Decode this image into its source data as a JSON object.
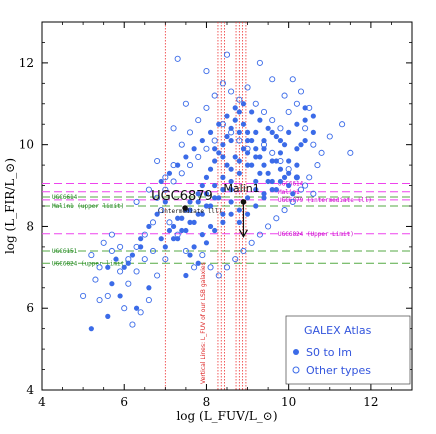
{
  "chart_data": {
    "type": "scatter",
    "xlim": [
      4,
      13
    ],
    "ylim": [
      4,
      13
    ],
    "x_ticks": [
      "4",
      "6",
      "8",
      "10",
      "12"
    ],
    "y_ticks": [
      "4",
      "6",
      "8",
      "10",
      "12"
    ],
    "xlabel": "log (L_FUV/L_⊙)",
    "ylabel": "log (L_FIR/L_⊙)",
    "legend": {
      "title": "GALEX Atlas",
      "entries": [
        {
          "label": "S0 to Im",
          "marker": "filled"
        },
        {
          "label": "Other types",
          "marker": "open"
        }
      ],
      "placement": "bottom-right"
    },
    "colors": {
      "points": "#3b6be8",
      "magenta_lines": "#ee44ee",
      "green_lines": "#55aa44",
      "red_lines": "#ee3333",
      "legend_text": "#3355dd",
      "magenta_text": "#cc00cc",
      "green_text": "#228822"
    },
    "horizontal_lines": [
      {
        "y": 9.05,
        "color": "magenta",
        "label": "UGC6614",
        "side": "right"
      },
      {
        "y": 8.85,
        "color": "magenta",
        "label": "Malin1",
        "side": "right"
      },
      {
        "y": 8.65,
        "color": "magenta",
        "label": "UGC6879 (intermediate lll)",
        "side": "right"
      },
      {
        "y": 7.82,
        "color": "magenta",
        "label": "UGC6824 (Upper Limit)",
        "side": "right"
      },
      {
        "y": 8.72,
        "color": "green",
        "label": "UGC6614",
        "side": "left"
      },
      {
        "y": 8.5,
        "color": "green",
        "label": "Malin1 (upper limit)",
        "side": "left"
      },
      {
        "y": 7.4,
        "color": "green",
        "label": "UGC6151",
        "side": "left"
      },
      {
        "y": 7.1,
        "color": "green",
        "label": "UGC6824 (upper limit)",
        "side": "left"
      }
    ],
    "vertical_lines": [
      7.0,
      8.28,
      8.36,
      8.44,
      8.72,
      8.8,
      8.88,
      8.96
    ],
    "vertical_lines_label": "Vertical Lines: L_FUV of our LSB galaxies",
    "annotated_points": [
      {
        "label": "UGC6879",
        "x": 7.48,
        "y": 8.45,
        "note": "(intermediate lll)"
      },
      {
        "label": "Malin1",
        "x": 8.9,
        "y": 8.6,
        "upper_limit": true,
        "arrow_to": 7.75
      }
    ],
    "series": [
      {
        "name": "S0 to Im",
        "marker": "filled",
        "points": [
          [
            5.2,
            5.5
          ],
          [
            5.6,
            5.8
          ],
          [
            5.7,
            6.6
          ],
          [
            6.3,
            6.0
          ],
          [
            6.6,
            6.5
          ],
          [
            5.9,
            6.3
          ],
          [
            6.1,
            7.1
          ],
          [
            6.4,
            7.5
          ],
          [
            6.9,
            7.7
          ],
          [
            7.1,
            7.9
          ],
          [
            7.3,
            8.2
          ],
          [
            7.5,
            8.4
          ],
          [
            7.6,
            8.6
          ],
          [
            7.8,
            8.8
          ],
          [
            7.9,
            9.0
          ],
          [
            8.0,
            9.2
          ],
          [
            8.1,
            9.4
          ],
          [
            8.2,
            9.6
          ],
          [
            8.3,
            9.8
          ],
          [
            8.4,
            10.0
          ],
          [
            8.5,
            10.2
          ],
          [
            8.6,
            10.4
          ],
          [
            8.7,
            10.6
          ],
          [
            8.8,
            10.8
          ],
          [
            8.9,
            10.5
          ],
          [
            9.0,
            10.3
          ],
          [
            9.1,
            10.1
          ],
          [
            9.2,
            9.9
          ],
          [
            9.3,
            9.7
          ],
          [
            9.4,
            9.5
          ],
          [
            9.5,
            9.3
          ],
          [
            9.6,
            9.1
          ],
          [
            9.7,
            9.6
          ],
          [
            9.8,
            9.4
          ],
          [
            9.9,
            9.2
          ],
          [
            10.0,
            9.0
          ],
          [
            10.1,
            8.8
          ],
          [
            10.2,
            9.5
          ],
          [
            10.3,
            10.0
          ],
          [
            10.4,
            10.6
          ],
          [
            9.0,
            9.8
          ],
          [
            8.8,
            9.6
          ],
          [
            8.6,
            9.4
          ],
          [
            8.4,
            9.2
          ],
          [
            8.2,
            9.0
          ],
          [
            8.0,
            8.8
          ],
          [
            7.8,
            8.6
          ],
          [
            7.6,
            8.4
          ],
          [
            7.4,
            8.2
          ],
          [
            7.2,
            8.0
          ],
          [
            8.5,
            9.5
          ],
          [
            8.7,
            9.7
          ],
          [
            8.9,
            9.9
          ],
          [
            9.1,
            9.5
          ],
          [
            9.3,
            9.3
          ],
          [
            9.5,
            9.1
          ],
          [
            9.7,
            8.9
          ],
          [
            9.2,
            9.1
          ],
          [
            8.6,
            8.9
          ],
          [
            8.3,
            8.7
          ],
          [
            8.1,
            8.5
          ],
          [
            7.9,
            8.3
          ],
          [
            7.7,
            8.1
          ],
          [
            7.5,
            7.9
          ],
          [
            7.3,
            7.7
          ],
          [
            7.7,
            7.5
          ],
          [
            7.9,
            7.8
          ],
          [
            8.1,
            8.0
          ],
          [
            8.4,
            8.3
          ],
          [
            8.6,
            8.6
          ],
          [
            8.8,
            8.4
          ],
          [
            9.0,
            8.7
          ],
          [
            9.2,
            8.9
          ],
          [
            9.4,
            8.8
          ],
          [
            9.6,
            9.6
          ],
          [
            9.8,
            9.8
          ],
          [
            10.0,
            9.6
          ],
          [
            10.2,
            9.2
          ],
          [
            9.9,
            10.0
          ],
          [
            9.7,
            10.2
          ],
          [
            9.5,
            10.4
          ],
          [
            9.3,
            10.6
          ],
          [
            9.1,
            10.8
          ],
          [
            8.9,
            11.0
          ],
          [
            8.7,
            10.9
          ],
          [
            8.5,
            10.7
          ],
          [
            8.3,
            10.5
          ],
          [
            8.1,
            10.3
          ],
          [
            7.9,
            10.1
          ],
          [
            7.7,
            9.9
          ],
          [
            7.5,
            9.7
          ],
          [
            7.3,
            9.5
          ],
          [
            7.1,
            9.3
          ],
          [
            6.9,
            9.1
          ],
          [
            7.0,
            8.6
          ],
          [
            6.8,
            8.3
          ],
          [
            6.6,
            8.0
          ],
          [
            6.4,
            7.7
          ],
          [
            6.2,
            7.3
          ],
          [
            6.0,
            7.0
          ],
          [
            5.8,
            7.2
          ],
          [
            5.6,
            7.0
          ],
          [
            8.2,
            9.9
          ],
          [
            8.4,
            9.7
          ],
          [
            8.6,
            10.1
          ],
          [
            8.8,
            10.3
          ],
          [
            9.0,
            10.1
          ],
          [
            9.2,
            10.3
          ],
          [
            9.4,
            10.1
          ],
          [
            9.6,
            10.3
          ],
          [
            9.8,
            10.1
          ],
          [
            10.0,
            10.3
          ],
          [
            10.2,
            10.5
          ],
          [
            10.4,
            10.9
          ],
          [
            10.6,
            10.7
          ],
          [
            9.4,
            9.9
          ],
          [
            9.2,
            9.7
          ],
          [
            9.0,
            9.5
          ],
          [
            8.8,
            9.3
          ],
          [
            8.6,
            9.1
          ],
          [
            8.4,
            8.9
          ],
          [
            8.2,
            8.7
          ],
          [
            8.0,
            8.5
          ],
          [
            7.8,
            8.3
          ],
          [
            7.6,
            8.1
          ],
          [
            7.4,
            7.9
          ],
          [
            7.2,
            7.7
          ],
          [
            7.0,
            7.5
          ],
          [
            7.6,
            7.3
          ],
          [
            7.8,
            7.1
          ],
          [
            7.5,
            6.8
          ],
          [
            8.0,
            7.6
          ],
          [
            8.2,
            7.9
          ],
          [
            8.4,
            8.1
          ],
          [
            8.6,
            8.3
          ],
          [
            8.8,
            8.1
          ],
          [
            9.0,
            8.3
          ],
          [
            9.2,
            8.5
          ],
          [
            9.4,
            8.7
          ],
          [
            9.6,
            8.9
          ],
          [
            9.8,
            9.1
          ],
          [
            10.0,
            9.3
          ],
          [
            10.2,
            9.9
          ],
          [
            10.4,
            10.1
          ],
          [
            10.6,
            10.3
          ]
        ]
      },
      {
        "name": "Other types",
        "marker": "open",
        "points": [
          [
            5.4,
            6.2
          ],
          [
            5.0,
            6.3
          ],
          [
            5.2,
            7.3
          ],
          [
            5.4,
            7.0
          ],
          [
            5.5,
            7.6
          ],
          [
            5.7,
            7.4
          ],
          [
            5.9,
            6.9
          ],
          [
            6.1,
            6.6
          ],
          [
            6.3,
            6.9
          ],
          [
            6.5,
            7.2
          ],
          [
            6.7,
            7.4
          ],
          [
            5.3,
            6.7
          ],
          [
            5.6,
            6.3
          ],
          [
            6.0,
            6.0
          ],
          [
            6.2,
            5.6
          ],
          [
            6.4,
            5.9
          ],
          [
            6.6,
            6.2
          ],
          [
            6.8,
            6.8
          ],
          [
            7.0,
            7.2
          ],
          [
            6.3,
            8.6
          ],
          [
            6.6,
            8.9
          ],
          [
            7.0,
            9.2
          ],
          [
            7.2,
            9.5
          ],
          [
            7.4,
            10.0
          ],
          [
            7.6,
            10.3
          ],
          [
            7.8,
            10.6
          ],
          [
            8.0,
            10.9
          ],
          [
            8.2,
            11.2
          ],
          [
            8.4,
            11.5
          ],
          [
            8.6,
            11.3
          ],
          [
            8.8,
            11.1
          ],
          [
            9.0,
            11.4
          ],
          [
            9.2,
            11.0
          ],
          [
            9.4,
            10.8
          ],
          [
            9.6,
            10.6
          ],
          [
            9.8,
            10.4
          ],
          [
            10.0,
            10.8
          ],
          [
            10.2,
            11.0
          ],
          [
            10.4,
            10.4
          ],
          [
            10.6,
            10.0
          ],
          [
            10.8,
            9.8
          ],
          [
            11.0,
            10.2
          ],
          [
            10.7,
            9.5
          ],
          [
            10.5,
            9.2
          ],
          [
            10.3,
            8.9
          ],
          [
            10.1,
            8.6
          ],
          [
            9.9,
            8.4
          ],
          [
            9.7,
            8.2
          ],
          [
            9.5,
            8.0
          ],
          [
            9.3,
            7.8
          ],
          [
            9.1,
            7.6
          ],
          [
            8.9,
            7.4
          ],
          [
            8.7,
            7.2
          ],
          [
            8.5,
            7.0
          ],
          [
            8.3,
            6.8
          ],
          [
            8.1,
            7.0
          ],
          [
            7.9,
            7.3
          ],
          [
            7.7,
            7.0
          ],
          [
            7.5,
            7.4
          ],
          [
            7.3,
            7.8
          ],
          [
            7.1,
            8.1
          ],
          [
            6.9,
            8.4
          ],
          [
            6.7,
            8.1
          ],
          [
            6.5,
            7.8
          ],
          [
            6.3,
            7.5
          ],
          [
            6.1,
            7.2
          ],
          [
            5.9,
            7.5
          ],
          [
            5.7,
            7.8
          ],
          [
            6.8,
            9.6
          ],
          [
            7.2,
            10.4
          ],
          [
            7.5,
            11.0
          ],
          [
            7.3,
            12.1
          ],
          [
            8.5,
            12.2
          ],
          [
            8.0,
            11.8
          ],
          [
            9.3,
            12.0
          ],
          [
            9.6,
            11.6
          ],
          [
            9.9,
            11.2
          ],
          [
            10.1,
            11.6
          ],
          [
            10.3,
            11.3
          ],
          [
            10.5,
            10.9
          ],
          [
            9.0,
            9.9
          ],
          [
            8.8,
            10.1
          ],
          [
            8.6,
            10.3
          ],
          [
            8.4,
            10.5
          ],
          [
            8.2,
            10.1
          ],
          [
            8.0,
            9.9
          ],
          [
            7.8,
            9.7
          ],
          [
            7.6,
            9.5
          ],
          [
            7.4,
            9.3
          ],
          [
            7.2,
            9.1
          ],
          [
            7.0,
            8.9
          ],
          [
            6.8,
            8.7
          ],
          [
            9.4,
            10.0
          ],
          [
            9.6,
            9.8
          ],
          [
            9.8,
            9.6
          ],
          [
            10.0,
            9.4
          ],
          [
            10.2,
            9.2
          ],
          [
            10.4,
            9.0
          ],
          [
            10.6,
            8.8
          ],
          [
            11.5,
            9.8
          ],
          [
            11.3,
            10.5
          ]
        ]
      }
    ]
  }
}
